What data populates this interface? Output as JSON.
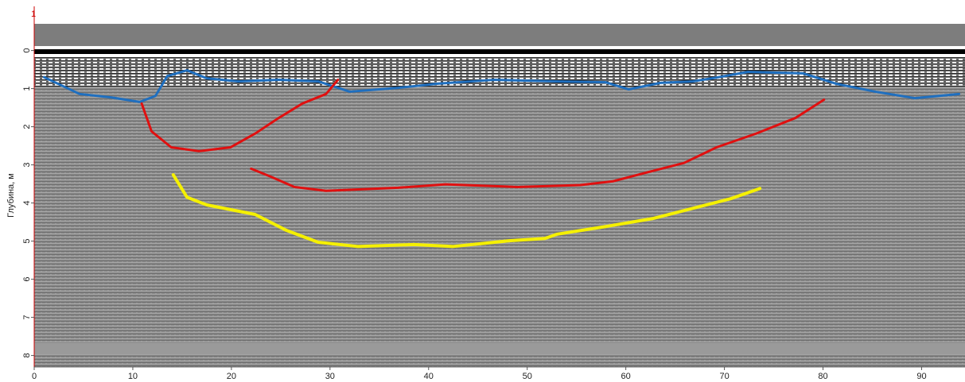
{
  "chart_data": {
    "type": "line",
    "marker_label": "1",
    "y_label": "Глубина, м",
    "xlim": [
      0,
      94.4
    ],
    "ylim": [
      -0.7,
      8.3
    ],
    "y_inverted": true,
    "xticks": [
      0,
      10,
      20,
      30,
      40,
      50,
      60,
      70,
      80,
      90
    ],
    "yticks": [
      0,
      1,
      2,
      3,
      4,
      5,
      6,
      7,
      8
    ],
    "axis_color": "#cc0000",
    "series": [
      {
        "color": "#1f6fbf",
        "width": 3,
        "x": [
          1,
          4.6,
          7.8,
          10.7,
          12.3,
          13.5,
          15.5,
          17.5,
          20.7,
          24.8,
          28.8,
          32,
          36.9,
          40.9,
          46.6,
          53,
          57.9,
          60.3,
          63.5,
          66.8,
          69.2,
          72.4,
          78,
          81.3,
          85.3,
          89.3,
          93.8
        ],
        "values": [
          0.7,
          1.14,
          1.23,
          1.35,
          1.19,
          0.67,
          0.52,
          0.73,
          0.81,
          0.77,
          0.81,
          1.08,
          0.98,
          0.87,
          0.77,
          0.81,
          0.83,
          1.02,
          0.85,
          0.81,
          0.71,
          0.56,
          0.6,
          0.87,
          1.08,
          1.25,
          1.14
        ]
      },
      {
        "color": "#e01010",
        "width": 3,
        "x": [
          10.9,
          11.9,
          13.9,
          16.7,
          19.9,
          22.4,
          24.8,
          27.2,
          29.6,
          30.8
        ],
        "values": [
          1.39,
          2.12,
          2.54,
          2.64,
          2.54,
          2.18,
          1.77,
          1.39,
          1.14,
          0.77
        ]
      },
      {
        "color": "#e01010",
        "width": 3,
        "x": [
          22,
          24,
          26.4,
          29.6,
          36.9,
          41.7,
          49,
          55.4,
          58.7,
          62.7,
          65.9,
          69.2,
          73.2,
          77.2,
          80.1
        ],
        "values": [
          3.1,
          3.31,
          3.58,
          3.68,
          3.6,
          3.51,
          3.58,
          3.53,
          3.43,
          3.16,
          2.95,
          2.54,
          2.18,
          1.77,
          1.29
        ]
      },
      {
        "color": "#f5f000",
        "width": 4,
        "x": [
          14.1,
          15.5,
          17.5,
          22.4,
          25.6,
          28.8,
          32.8,
          38.5,
          42.5,
          48.2,
          51.8,
          53,
          57.9,
          62.7,
          66.8,
          70.6,
          73.6
        ],
        "values": [
          3.26,
          3.85,
          4.05,
          4.3,
          4.72,
          5.03,
          5.14,
          5.09,
          5.14,
          4.99,
          4.93,
          4.82,
          4.62,
          4.41,
          4.14,
          3.89,
          3.62
        ]
      }
    ]
  }
}
